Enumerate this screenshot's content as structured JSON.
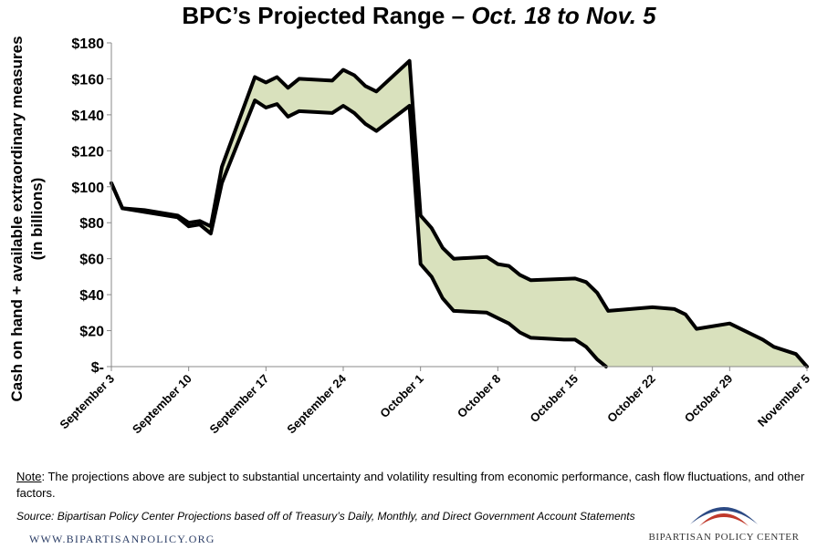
{
  "header": {
    "title_main": "BPC’s Projected Range – ",
    "title_dates": "Oct. 18 to Nov. 5"
  },
  "chart_data": {
    "type": "area",
    "title": "BPC’s Projected Range – Oct. 18 to Nov. 5",
    "ylabel_line1": "Cash on hand + available extraordinary measures",
    "ylabel_line2": "(in billions)",
    "xlabel": "",
    "x_start": "September 3",
    "x_end": "November 5",
    "xlim_days": [
      0,
      63
    ],
    "ylim": [
      0,
      180
    ],
    "y_ticks": [
      0,
      20,
      40,
      60,
      80,
      100,
      120,
      140,
      160,
      180
    ],
    "y_tick_labels": [
      "$-",
      "$20",
      "$40",
      "$60",
      "$80",
      "$100",
      "$120",
      "$140",
      "$160",
      "$180"
    ],
    "x_ticks": [
      {
        "day": 0,
        "label": "September 3"
      },
      {
        "day": 7,
        "label": "September 10"
      },
      {
        "day": 14,
        "label": "September 17"
      },
      {
        "day": 21,
        "label": "September 24"
      },
      {
        "day": 28,
        "label": "October 1"
      },
      {
        "day": 35,
        "label": "October 8"
      },
      {
        "day": 42,
        "label": "October 15"
      },
      {
        "day": 49,
        "label": "October 22"
      },
      {
        "day": 56,
        "label": "October 29"
      },
      {
        "day": 63,
        "label": "November 5"
      }
    ],
    "grid": false,
    "fill_color": "#d9e1bd",
    "line_color": "#000000",
    "series": [
      {
        "points": [
          [
            0,
            102
          ],
          [
            1,
            88
          ],
          [
            3,
            87
          ],
          [
            6,
            84
          ],
          [
            7,
            80
          ],
          [
            8,
            81
          ],
          [
            9,
            78
          ],
          [
            10,
            111
          ],
          [
            13,
            161
          ],
          [
            14,
            158
          ],
          [
            15,
            161
          ],
          [
            16,
            155
          ],
          [
            17,
            160
          ],
          [
            20,
            159
          ],
          [
            21,
            165
          ],
          [
            22,
            162
          ],
          [
            23,
            156
          ],
          [
            24,
            153
          ],
          [
            27,
            170
          ],
          [
            28,
            84
          ],
          [
            29,
            77
          ],
          [
            30,
            66
          ],
          [
            31,
            60
          ],
          [
            34,
            61
          ],
          [
            35,
            57
          ],
          [
            36,
            56
          ],
          [
            37,
            51
          ],
          [
            38,
            48
          ],
          [
            42,
            49
          ],
          [
            43,
            47
          ],
          [
            44,
            41
          ],
          [
            45,
            31
          ],
          [
            49,
            33
          ],
          [
            51,
            32
          ],
          [
            52,
            29
          ],
          [
            53,
            21
          ],
          [
            56,
            24
          ],
          [
            59,
            15
          ],
          [
            60,
            11
          ],
          [
            62,
            7
          ],
          [
            63,
            0
          ]
        ]
      },
      {
        "points": [
          [
            0,
            102
          ],
          [
            1,
            88
          ],
          [
            3,
            86
          ],
          [
            6,
            83
          ],
          [
            7,
            78
          ],
          [
            8,
            79
          ],
          [
            9,
            74
          ],
          [
            10,
            102
          ],
          [
            13,
            148
          ],
          [
            14,
            144
          ],
          [
            15,
            146
          ],
          [
            16,
            139
          ],
          [
            17,
            142
          ],
          [
            20,
            141
          ],
          [
            21,
            145
          ],
          [
            22,
            141
          ],
          [
            23,
            135
          ],
          [
            24,
            131
          ],
          [
            27,
            145
          ],
          [
            28,
            57
          ],
          [
            29,
            50
          ],
          [
            30,
            38
          ],
          [
            31,
            31
          ],
          [
            34,
            30
          ],
          [
            35,
            27
          ],
          [
            36,
            24
          ],
          [
            37,
            19
          ],
          [
            38,
            16
          ],
          [
            41,
            15
          ],
          [
            42,
            15
          ],
          [
            43,
            11
          ],
          [
            44,
            4
          ],
          [
            44.8,
            0
          ]
        ]
      }
    ]
  },
  "footer": {
    "note_label": "Note",
    "note_text": ": The projections above are subject to substantial uncertainty and volatility resulting from economic performance, cash flow fluctuations, and other factors.",
    "source": "Source: Bipartisan Policy Center Projections based off of Treasury’s Daily, Monthly, and Direct Government Account Statements",
    "url": "WWW.BIPARTISANPOLICY.ORG",
    "org": "BIPARTISAN POLICY CENTER"
  },
  "colors": {
    "logo_blue": "#2c4a84",
    "logo_red": "#c0392b"
  }
}
